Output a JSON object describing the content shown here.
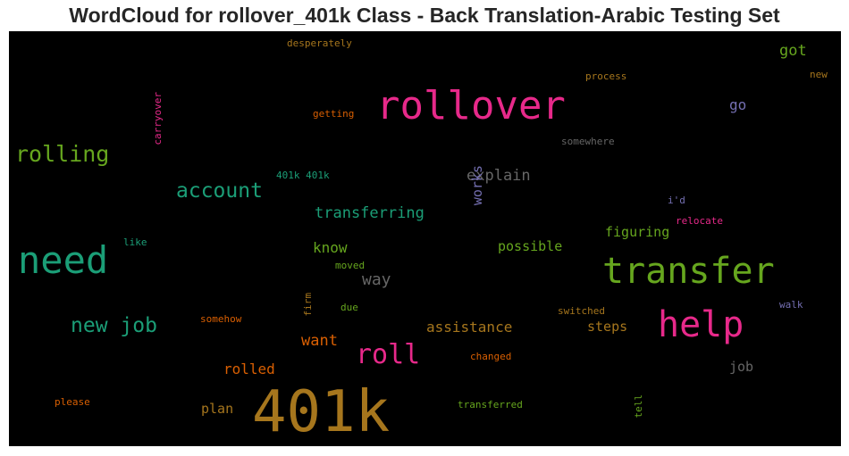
{
  "chart_data": {
    "type": "wordcloud",
    "title": "WordCloud for rollover_401k Class - Back Translation-Arabic Testing Set",
    "background": "#000000",
    "words": [
      {
        "text": "401k",
        "color": "#a6761d"
      },
      {
        "text": "rollover",
        "color": "#e7298a"
      },
      {
        "text": "transfer",
        "color": "#66a61e"
      },
      {
        "text": "need",
        "color": "#1b9e77"
      },
      {
        "text": "help",
        "color": "#e7298a"
      },
      {
        "text": "roll",
        "color": "#e7298a"
      },
      {
        "text": "rolling",
        "color": "#66a61e"
      },
      {
        "text": "new job",
        "color": "#1b9e77"
      },
      {
        "text": "account",
        "color": "#1b9e77"
      },
      {
        "text": "transferring",
        "color": "#1b9e77"
      },
      {
        "text": "explain",
        "color": "#666666"
      },
      {
        "text": "works",
        "color": "#7570b3"
      },
      {
        "text": "want",
        "color": "#d95f02"
      },
      {
        "text": "rolled",
        "color": "#d95f02"
      },
      {
        "text": "know",
        "color": "#66a61e"
      },
      {
        "text": "way",
        "color": "#666666"
      },
      {
        "text": "assistance",
        "color": "#a6761d"
      },
      {
        "text": "possible",
        "color": "#66a61e"
      },
      {
        "text": "figuring",
        "color": "#66a61e"
      },
      {
        "text": "steps",
        "color": "#a6761d"
      },
      {
        "text": "got",
        "color": "#66a61e"
      },
      {
        "text": "go",
        "color": "#7570b3"
      },
      {
        "text": "plan",
        "color": "#a6761d"
      },
      {
        "text": "job",
        "color": "#666666"
      },
      {
        "text": "process",
        "color": "#a6761d"
      },
      {
        "text": "new",
        "color": "#a6761d"
      },
      {
        "text": "desperately",
        "color": "#a6761d"
      },
      {
        "text": "carryover",
        "color": "#e7298a"
      },
      {
        "text": "getting",
        "color": "#d95f02"
      },
      {
        "text": "somewhere",
        "color": "#666666"
      },
      {
        "text": "401k 401k",
        "color": "#1b9e77"
      },
      {
        "text": "i'd",
        "color": "#7570b3"
      },
      {
        "text": "relocate",
        "color": "#e7298a"
      },
      {
        "text": "like",
        "color": "#1b9e77"
      },
      {
        "text": "moved",
        "color": "#66a61e"
      },
      {
        "text": "firm",
        "color": "#a6761d"
      },
      {
        "text": "due",
        "color": "#66a61e"
      },
      {
        "text": "switched",
        "color": "#a6761d"
      },
      {
        "text": "walk",
        "color": "#7570b3"
      },
      {
        "text": "somehow",
        "color": "#d95f02"
      },
      {
        "text": "changed",
        "color": "#d95f02"
      },
      {
        "text": "tell",
        "color": "#66a61e"
      },
      {
        "text": "please",
        "color": "#d95f02"
      },
      {
        "text": "transferred",
        "color": "#66a61e"
      }
    ]
  }
}
